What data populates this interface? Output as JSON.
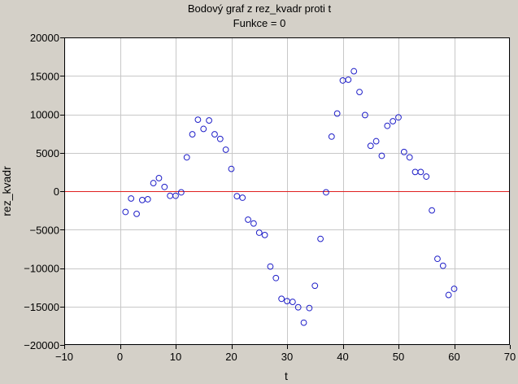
{
  "chart_data": {
    "type": "scatter",
    "title": "Bodový graf z rez_kvadr proti t",
    "subtitle": "Funkce = 0",
    "xlabel": "t",
    "ylabel": "rez_kvadr",
    "xlim": [
      -10,
      70
    ],
    "ylim": [
      -20000,
      20000
    ],
    "x_ticks": [
      -10,
      0,
      10,
      20,
      30,
      40,
      50,
      60,
      70
    ],
    "y_ticks": [
      -20000,
      -15000,
      -10000,
      -5000,
      0,
      5000,
      10000,
      15000,
      20000
    ],
    "grid": true,
    "reference_line": {
      "y": 0,
      "color": "#e02020"
    },
    "marker": {
      "shape": "open-circle",
      "color": "#1f1fc8"
    },
    "background_plot": "#ffffff",
    "background_frame": "#d4d0c8",
    "series": [
      {
        "x": [
          1,
          2,
          3,
          4,
          5,
          6,
          7,
          8,
          9,
          10,
          11,
          12,
          13,
          14,
          15,
          16,
          17,
          18,
          19,
          20,
          21,
          22,
          23,
          24,
          25,
          26,
          27,
          28,
          29,
          30,
          31,
          32,
          33,
          34,
          35,
          36,
          37,
          38,
          39,
          40,
          41,
          42,
          43,
          44,
          45,
          46,
          47,
          48,
          49,
          50,
          51,
          52,
          53,
          54,
          55,
          56,
          57,
          58,
          59,
          60
        ],
        "y": [
          -2700,
          -950,
          -2950,
          -1150,
          -1050,
          1050,
          1700,
          550,
          -600,
          -600,
          -150,
          4400,
          7400,
          9300,
          8100,
          9200,
          7400,
          6800,
          5400,
          2900,
          -650,
          -850,
          -3700,
          -4200,
          -5400,
          -5700,
          -9800,
          -11300,
          -14000,
          -14300,
          -14400,
          -15100,
          -17100,
          -15200,
          -12300,
          -6200,
          -150,
          7100,
          10100,
          14400,
          14500,
          15600,
          12900,
          9900,
          5900,
          6500,
          4600,
          8500,
          9100,
          9600,
          5100,
          4400,
          2500,
          2500,
          1900,
          -2500,
          -8800,
          -9700,
          -13500,
          -12700
        ]
      }
    ]
  }
}
